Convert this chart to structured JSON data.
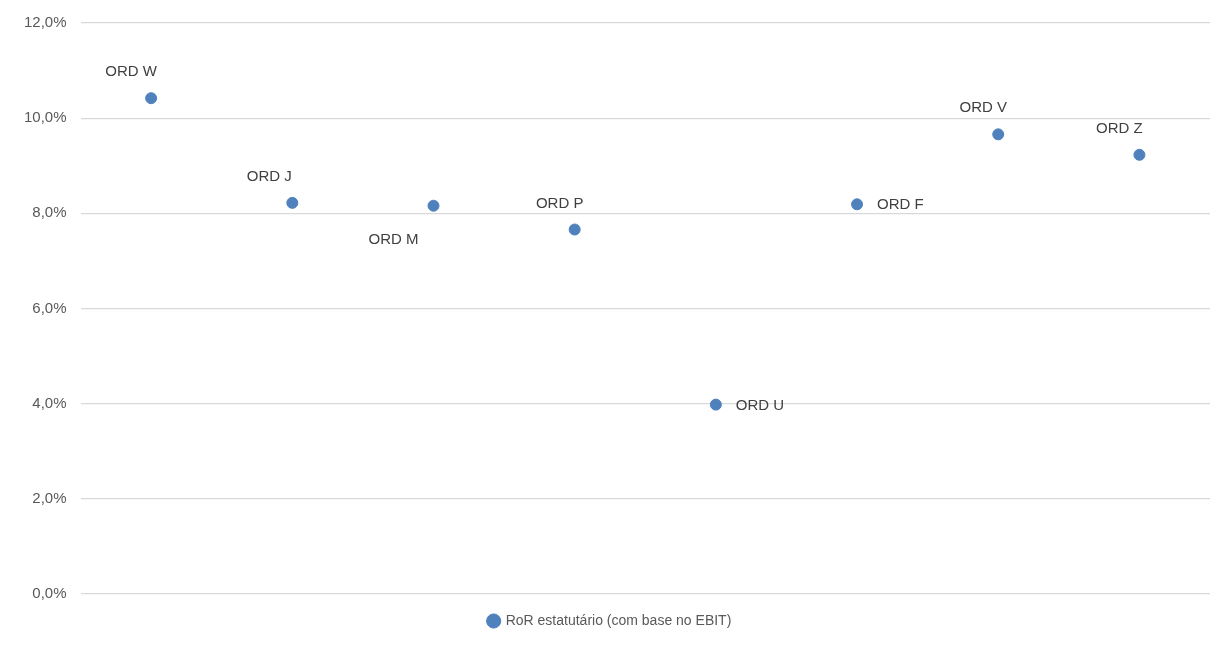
{
  "chart_data": {
    "type": "scatter",
    "categories": [
      null,
      null,
      null,
      null,
      null,
      null,
      null,
      null
    ],
    "series": [
      {
        "name": "RoR estatutário (com base no EBIT)",
        "color": "#4f81bd",
        "values": [
          10.42,
          8.22,
          8.16,
          7.66,
          3.98,
          8.19,
          9.66,
          9.23
        ],
        "value_labels": [
          "ORD W",
          "ORD J",
          "ORD M",
          "ORD P",
          "ORD U",
          "ORD F",
          "ORD V",
          "ORD Z"
        ]
      }
    ],
    "ylim": [
      0,
      12
    ],
    "yticks": [
      {
        "value": 0,
        "label": "0,0%"
      },
      {
        "value": 2,
        "label": "2,0%"
      },
      {
        "value": 4,
        "label": "4,0%"
      },
      {
        "value": 6,
        "label": "6,0%"
      },
      {
        "value": 8,
        "label": "8,0%"
      },
      {
        "value": 10,
        "label": "10,0%"
      },
      {
        "value": 12,
        "label": "12,0%"
      }
    ],
    "grid": "y",
    "legend": "bottom",
    "marker": "circle"
  }
}
